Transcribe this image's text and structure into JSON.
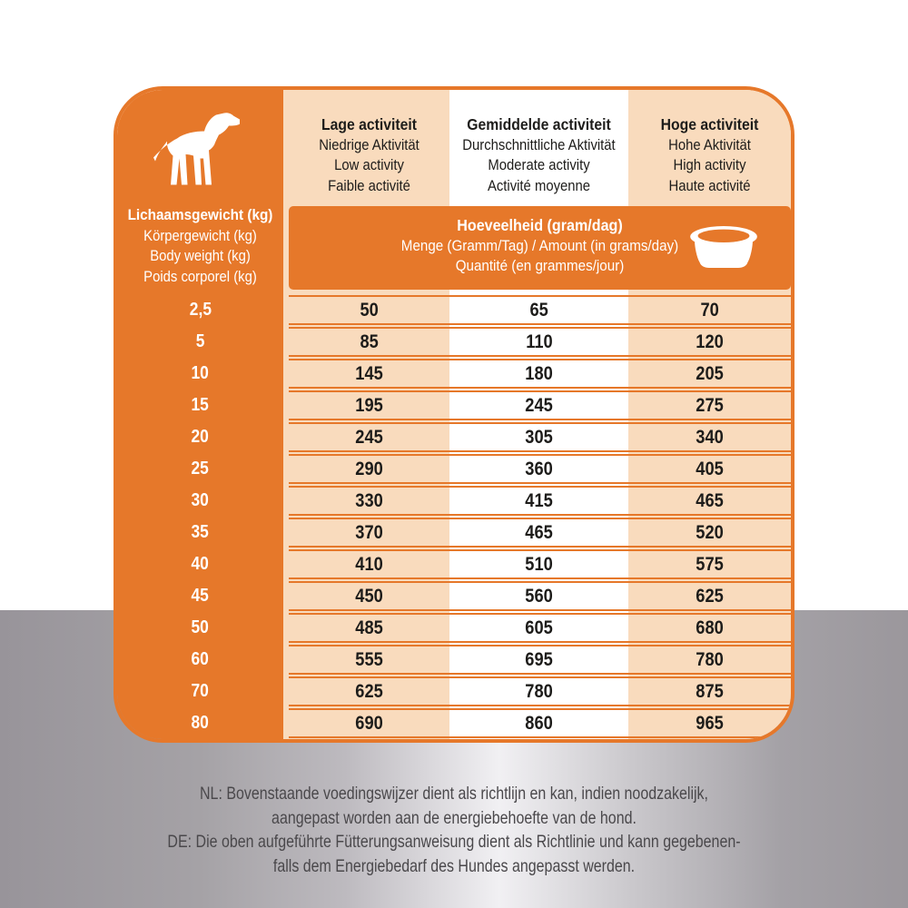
{
  "theme": {
    "orange": "#e6782a",
    "peach": "#f9dbbd",
    "white": "#ffffff",
    "text_dark": "#1d1c1a",
    "gray_band_dark": "#98949a",
    "gray_band_light": "#f1f0f3",
    "footer_text": "#4a484b"
  },
  "weight_header": {
    "lines": [
      "Lichaamsgewicht (kg)",
      "Körpergewicht (kg)",
      "Body weight (kg)",
      "Poids corporel (kg)"
    ]
  },
  "activity_headers": [
    {
      "lines": [
        "Lage activiteit",
        "Niedrige Aktivität",
        "Low activity",
        "Faible activité"
      ]
    },
    {
      "lines": [
        "Gemiddelde activiteit",
        "Durchschnittliche Aktivität",
        "Moderate activity",
        "Activité moyenne"
      ]
    },
    {
      "lines": [
        "Hoge activiteit",
        "Hohe Aktivität",
        "High activity",
        "Haute activité"
      ]
    }
  ],
  "amount_banner": {
    "lines": [
      "Hoeveelheid (gram/dag)",
      "Menge (Gramm/Tag) / Amount (in grams/day)",
      "Quantité (en grammes/jour)"
    ],
    "icon": "dog-bowl-icon"
  },
  "icons": {
    "dog": "dog-silhouette-icon",
    "bowl": "dog-bowl-icon"
  },
  "chart_data": {
    "type": "table",
    "title": "Hoeveelheid (gram/dag)",
    "columns": [
      "Lichaamsgewicht (kg)",
      "Lage activiteit",
      "Gemiddelde activiteit",
      "Hoge activiteit"
    ],
    "rows": [
      {
        "weight": "2,5",
        "values": [
          "50",
          "65",
          "70"
        ]
      },
      {
        "weight": "5",
        "values": [
          "85",
          "110",
          "120"
        ]
      },
      {
        "weight": "10",
        "values": [
          "145",
          "180",
          "205"
        ]
      },
      {
        "weight": "15",
        "values": [
          "195",
          "245",
          "275"
        ]
      },
      {
        "weight": "20",
        "values": [
          "245",
          "305",
          "340"
        ]
      },
      {
        "weight": "25",
        "values": [
          "290",
          "360",
          "405"
        ]
      },
      {
        "weight": "30",
        "values": [
          "330",
          "415",
          "465"
        ]
      },
      {
        "weight": "35",
        "values": [
          "370",
          "465",
          "520"
        ]
      },
      {
        "weight": "40",
        "values": [
          "410",
          "510",
          "575"
        ]
      },
      {
        "weight": "45",
        "values": [
          "450",
          "560",
          "625"
        ]
      },
      {
        "weight": "50",
        "values": [
          "485",
          "605",
          "680"
        ]
      },
      {
        "weight": "60",
        "values": [
          "555",
          "695",
          "780"
        ]
      },
      {
        "weight": "70",
        "values": [
          "625",
          "780",
          "875"
        ]
      },
      {
        "weight": "80",
        "values": [
          "690",
          "860",
          "965"
        ]
      }
    ]
  },
  "footer": {
    "lines": [
      "NL: Bovenstaande voedingswijzer dient als richtlijn en kan, indien noodzakelijk,",
      "aangepast worden aan de energiebehoefte van de hond.",
      "DE: Die oben aufgeführte Fütterungsanweisung dient als Richtlinie und kann gegebenen-",
      "falls dem Energiebedarf des Hundes angepasst werden."
    ]
  }
}
